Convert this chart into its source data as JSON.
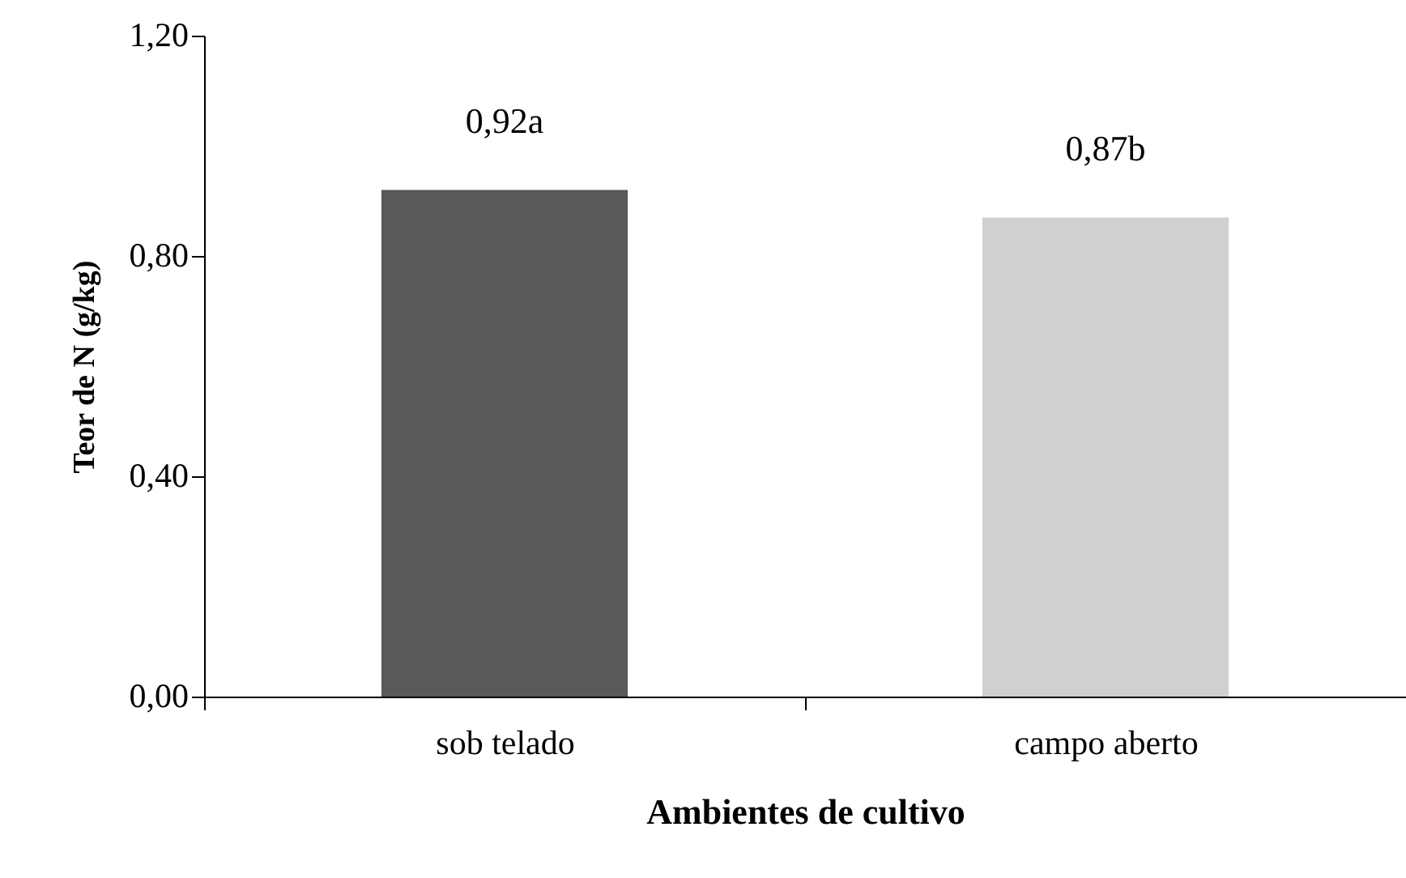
{
  "chart_data": {
    "type": "bar",
    "xlabel": "Ambientes de cultivo",
    "ylabel": "Teor de N (g/kg)",
    "categories": [
      "sob telado",
      "campo aberto"
    ],
    "values": [
      0.92,
      0.87
    ],
    "colors": [
      "#595959",
      "#d0d0d0"
    ],
    "value_labels": [
      "0,92a",
      "0,87b"
    ],
    "ylim": [
      0,
      1.2
    ],
    "yticks": [
      {
        "value": 0,
        "label": "0,00"
      },
      {
        "value": 0.4,
        "label": "0,40"
      },
      {
        "value": 0.8,
        "label": "0,80"
      },
      {
        "value": 1.2,
        "label": "1,20"
      }
    ],
    "grid": false
  }
}
